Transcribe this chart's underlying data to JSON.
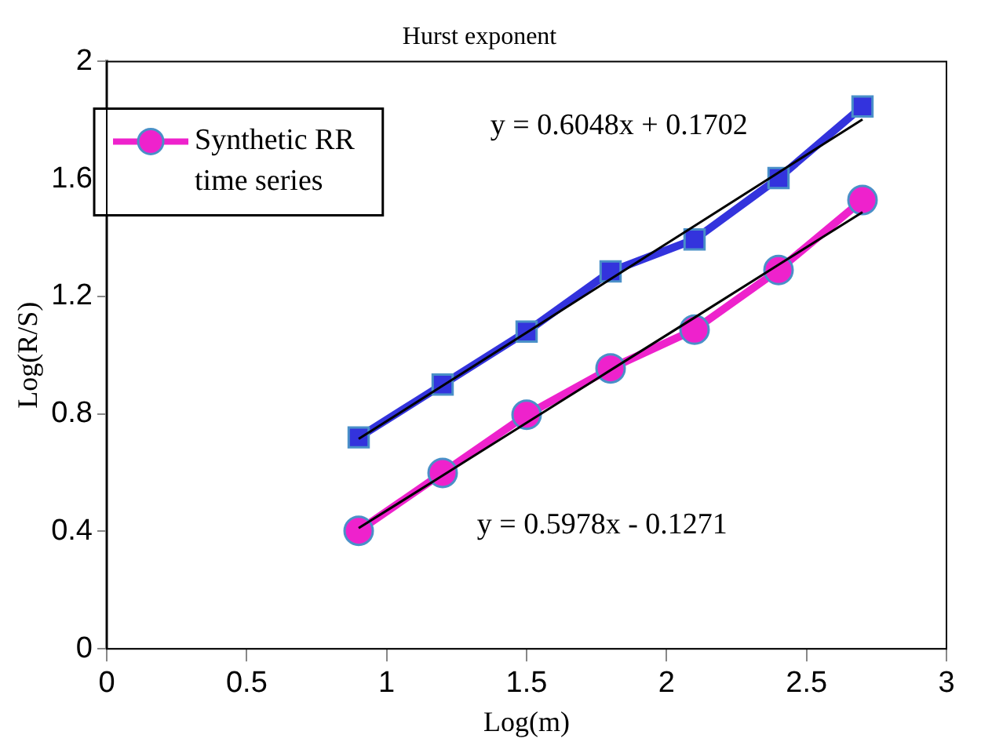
{
  "chart_data": {
    "type": "line",
    "title": "Hurst exponent",
    "xlabel": "Log(m)",
    "ylabel": "Log(R/S)",
    "x": [
      0.9,
      1.2,
      1.5,
      1.8,
      2.1,
      2.4,
      2.7
    ],
    "series": [
      {
        "color": "#3333dd",
        "marker": "square",
        "values": [
          0.72,
          0.9,
          1.08,
          1.285,
          1.394,
          1.603,
          1.847
        ]
      },
      {
        "name": "Synthetic RR time series",
        "color": "#ee22cc",
        "marker": "circle",
        "values": [
          0.402,
          0.599,
          0.797,
          0.955,
          1.087,
          1.29,
          1.528
        ]
      },
      {
        "color": "#000000",
        "marker": "none",
        "values": [
          0.715,
          0.896,
          1.077,
          1.259,
          1.44,
          1.622,
          1.803
        ]
      },
      {
        "color": "#000000",
        "marker": "none",
        "values": [
          0.411,
          0.59,
          0.77,
          0.949,
          1.128,
          1.308,
          1.487
        ]
      }
    ],
    "annotations": [
      "y = 0.6048x + 0.1702",
      "y = 0.5978x - 0.1271"
    ],
    "xlim": [
      0,
      3
    ],
    "xticks": [
      0,
      0.5,
      1,
      1.5,
      2,
      2.5,
      3
    ],
    "ylim": [
      0,
      2
    ],
    "yticks": [
      0,
      0.4,
      0.8,
      1.2,
      1.6,
      2
    ],
    "grid": false,
    "legend": "top left"
  }
}
